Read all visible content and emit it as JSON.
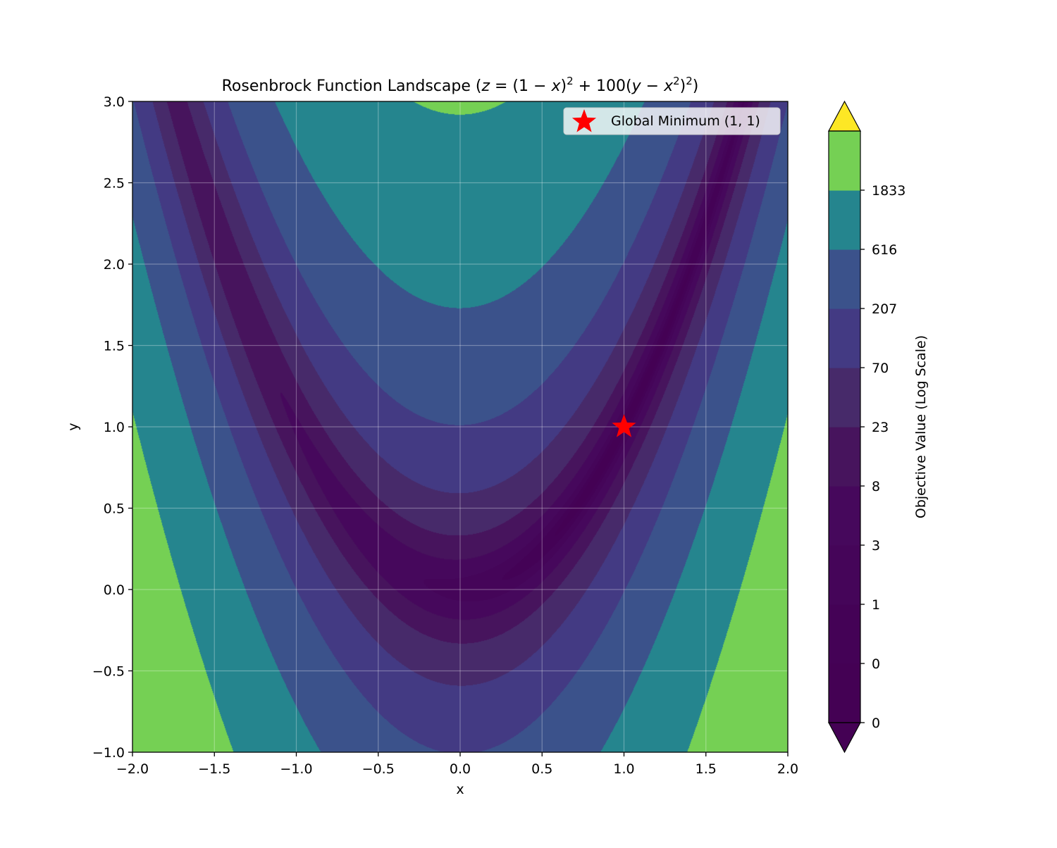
{
  "chart_data": {
    "type": "contour",
    "title": "Rosenbrock Function Landscape (z = (1 − x)² + 100(y − x²)²)",
    "title_parts": {
      "prefix": "Rosenbrock Function Landscape (",
      "z": "z",
      "eq": " = (1 − ",
      "x1": "x",
      "close1": ")",
      "sq1": "2",
      "mid": " + 100(",
      "y": "y",
      "minus": " − ",
      "x2": "x",
      "sq2": "2",
      "close2": ")",
      "sq3": "2",
      "suffix": ")"
    },
    "function": "(1 - x)^2 + 100*(y - x^2)^2",
    "xlabel": "x",
    "ylabel": "y",
    "xlim": [
      -2.0,
      2.0
    ],
    "ylim": [
      -1.0,
      3.0
    ],
    "xticks": [
      -2.0,
      -1.5,
      -1.0,
      -0.5,
      0.0,
      0.5,
      1.0,
      1.5,
      2.0
    ],
    "xtick_labels": [
      "−2.0",
      "−1.5",
      "−1.0",
      "−0.5",
      "0.0",
      "0.5",
      "1.0",
      "1.5",
      "2.0"
    ],
    "yticks": [
      -1.0,
      -0.5,
      0.0,
      0.5,
      1.0,
      1.5,
      2.0,
      2.5,
      3.0
    ],
    "ytick_labels": [
      "−1.0",
      "−0.5",
      "0.0",
      "0.5",
      "1.0",
      "1.5",
      "2.0",
      "2.5",
      "3.0"
    ],
    "grid": true,
    "levels": [
      0,
      0.18,
      0.55,
      1.5,
      4.4,
      12,
      36,
      103,
      300,
      853,
      2500
    ],
    "level_colors": [
      "#440154",
      "#440256",
      "#450559",
      "#46085c",
      "#47145d",
      "#472a6a",
      "#433a83",
      "#3b528b",
      "#25858e",
      "#75d054"
    ],
    "extend_color_high": "#fde725",
    "extend_color_low": "#440154",
    "colorbar": {
      "label": "Objective Value (Log Scale)",
      "ticks": [
        "0",
        "0",
        "1",
        "3",
        "8",
        "23",
        "70",
        "207",
        "616",
        "1833"
      ]
    },
    "markers": [
      {
        "x": 1.0,
        "y": 1.0,
        "symbol": "star",
        "color": "#ff0000",
        "label": "Global Minimum (1, 1)"
      }
    ],
    "legend": {
      "location": "upper right",
      "entries": [
        "Global Minimum (1, 1)"
      ]
    }
  }
}
